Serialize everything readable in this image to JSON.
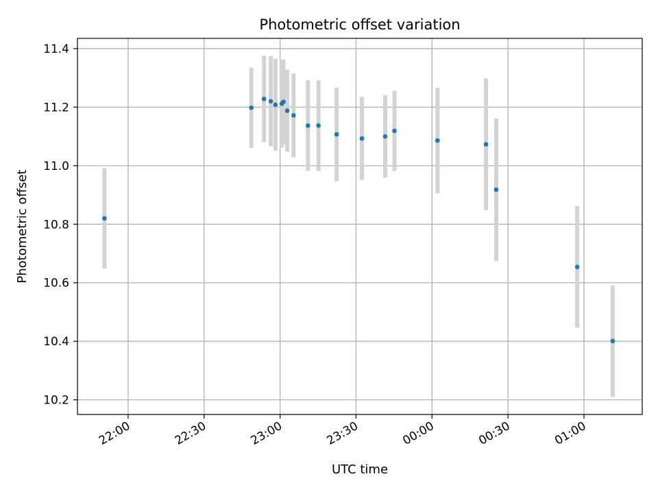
{
  "chart_data": {
    "type": "scatter",
    "title": "Photometric offset variation",
    "xlabel": "UTC time",
    "ylabel": "Photometric offset",
    "x_axis": {
      "kind": "time",
      "range_utc": [
        "21:40",
        "01:23"
      ]
    },
    "ylim": [
      10.15,
      11.435
    ],
    "x_ticks": [
      {
        "label": "22:00",
        "t": "22:00"
      },
      {
        "label": "22:30",
        "t": "22:30"
      },
      {
        "label": "23:00",
        "t": "23:00"
      },
      {
        "label": "23:30",
        "t": "23:30"
      },
      {
        "label": "00:00",
        "t": "00:00"
      },
      {
        "label": "00:30",
        "t": "00:30"
      },
      {
        "label": "01:00",
        "t": "01:00"
      }
    ],
    "y_ticks": [
      {
        "label": "10.2",
        "value": 10.2
      },
      {
        "label": "10.4",
        "value": 10.4
      },
      {
        "label": "10.6",
        "value": 10.6
      },
      {
        "label": "10.8",
        "value": 10.8
      },
      {
        "label": "11.0",
        "value": 11.0
      },
      {
        "label": "11.2",
        "value": 11.2
      },
      {
        "label": "11.4",
        "value": 11.4
      }
    ],
    "grid": true,
    "legend": "none",
    "colors": {
      "marker": "#1f77b4",
      "errorbar": "#d3d3d3",
      "grid": "#b0b0b0"
    },
    "points": [
      {
        "t": "21:50:40",
        "y": 10.82,
        "err": 0.172
      },
      {
        "t": "22:48:40",
        "y": 11.198,
        "err": 0.137
      },
      {
        "t": "22:53:40",
        "y": 11.228,
        "err": 0.148
      },
      {
        "t": "22:56:20",
        "y": 11.22,
        "err": 0.154
      },
      {
        "t": "22:58:10",
        "y": 11.208,
        "err": 0.157
      },
      {
        "t": "23:00:40",
        "y": 11.212,
        "err": 0.15
      },
      {
        "t": "23:01:20",
        "y": 11.218,
        "err": 0.145
      },
      {
        "t": "23:02:50",
        "y": 11.188,
        "err": 0.14
      },
      {
        "t": "23:05:20",
        "y": 11.172,
        "err": 0.143
      },
      {
        "t": "23:11:00",
        "y": 11.137,
        "err": 0.155
      },
      {
        "t": "23:15:10",
        "y": 11.137,
        "err": 0.155
      },
      {
        "t": "23:22:20",
        "y": 11.107,
        "err": 0.16
      },
      {
        "t": "23:32:20",
        "y": 11.093,
        "err": 0.142
      },
      {
        "t": "23:41:30",
        "y": 11.1,
        "err": 0.141
      },
      {
        "t": "23:45:10",
        "y": 11.119,
        "err": 0.137
      },
      {
        "t": "00:02:10",
        "y": 11.086,
        "err": 0.18
      },
      {
        "t": "00:21:20",
        "y": 11.073,
        "err": 0.225
      },
      {
        "t": "00:25:20",
        "y": 10.918,
        "err": 0.243
      },
      {
        "t": "00:57:20",
        "y": 10.654,
        "err": 0.208
      },
      {
        "t": "01:11:20",
        "y": 10.401,
        "err": 0.19
      }
    ]
  }
}
